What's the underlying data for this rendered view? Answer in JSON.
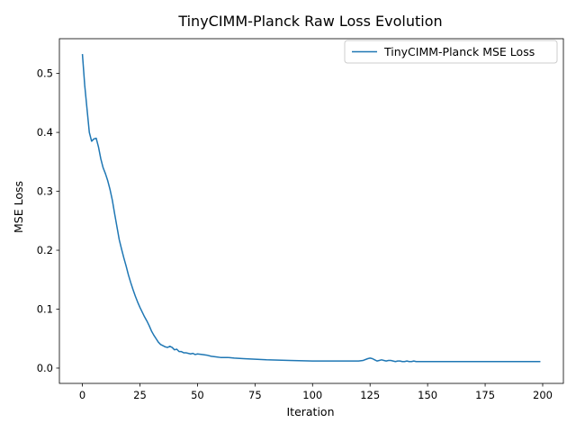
{
  "chart_data": {
    "type": "line",
    "title": "TinyCIMM-Planck Raw Loss Evolution",
    "xlabel": "Iteration",
    "ylabel": "MSE Loss",
    "xlim": [
      -10,
      209
    ],
    "ylim": [
      -0.026,
      0.559
    ],
    "xticks": [
      0,
      25,
      50,
      75,
      100,
      125,
      150,
      175,
      200
    ],
    "yticks": [
      0.0,
      0.1,
      0.2,
      0.3,
      0.4,
      0.5
    ],
    "xtick_labels": [
      "0",
      "25",
      "50",
      "75",
      "100",
      "125",
      "150",
      "175",
      "200"
    ],
    "ytick_labels": [
      "0.0",
      "0.1",
      "0.2",
      "0.3",
      "0.4",
      "0.5"
    ],
    "grid": false,
    "legend_position": "top-right",
    "series": [
      {
        "name": "TinyCIMM-Planck MSE Loss",
        "color": "#1f77b4",
        "x": [
          0,
          1,
          2,
          3,
          4,
          5,
          6,
          7,
          8,
          9,
          10,
          11,
          12,
          13,
          14,
          15,
          16,
          17,
          18,
          19,
          20,
          21,
          22,
          23,
          24,
          25,
          26,
          27,
          28,
          29,
          30,
          31,
          32,
          33,
          34,
          35,
          36,
          37,
          38,
          39,
          40,
          41,
          42,
          43,
          44,
          45,
          46,
          47,
          48,
          49,
          50,
          52,
          54,
          56,
          58,
          60,
          63,
          66,
          70,
          75,
          80,
          90,
          100,
          110,
          115,
          120,
          122,
          124,
          125,
          126,
          127,
          128,
          129,
          130,
          131,
          132,
          133,
          134,
          135,
          136,
          137,
          138,
          139,
          140,
          141,
          142,
          143,
          144,
          145,
          146,
          148,
          150,
          152,
          155,
          160,
          170,
          180,
          190,
          199
        ],
        "y": [
          0.533,
          0.48,
          0.44,
          0.4,
          0.385,
          0.389,
          0.39,
          0.375,
          0.355,
          0.34,
          0.33,
          0.318,
          0.303,
          0.285,
          0.262,
          0.24,
          0.218,
          0.202,
          0.187,
          0.173,
          0.158,
          0.145,
          0.133,
          0.122,
          0.112,
          0.103,
          0.095,
          0.087,
          0.08,
          0.072,
          0.063,
          0.056,
          0.05,
          0.044,
          0.04,
          0.038,
          0.036,
          0.035,
          0.037,
          0.035,
          0.031,
          0.032,
          0.028,
          0.028,
          0.026,
          0.026,
          0.025,
          0.024,
          0.025,
          0.023,
          0.024,
          0.023,
          0.022,
          0.02,
          0.019,
          0.018,
          0.018,
          0.017,
          0.016,
          0.015,
          0.014,
          0.013,
          0.012,
          0.012,
          0.012,
          0.012,
          0.013,
          0.016,
          0.017,
          0.016,
          0.014,
          0.012,
          0.013,
          0.014,
          0.013,
          0.012,
          0.013,
          0.013,
          0.012,
          0.011,
          0.012,
          0.012,
          0.011,
          0.011,
          0.012,
          0.011,
          0.011,
          0.012,
          0.011,
          0.011,
          0.011,
          0.011,
          0.011,
          0.011,
          0.011,
          0.011,
          0.011,
          0.011,
          0.011
        ]
      }
    ]
  }
}
